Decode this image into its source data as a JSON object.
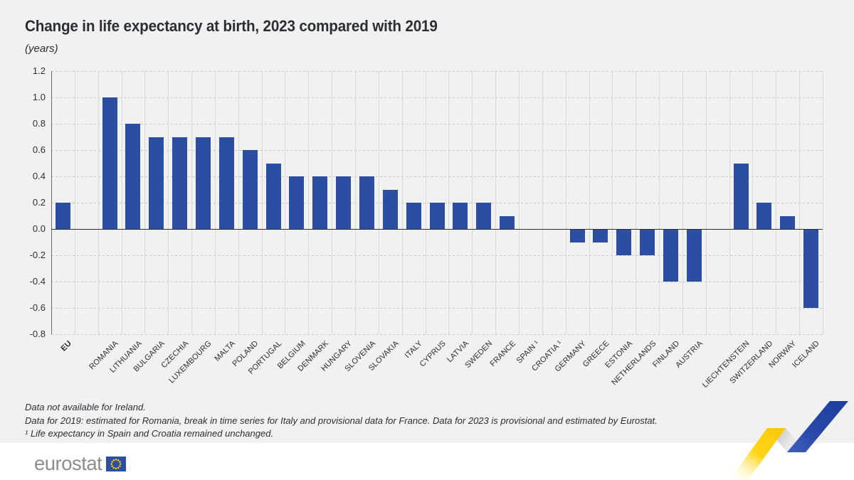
{
  "page": {
    "title": "Change in life expectancy at birth, 2023 compared with 2019",
    "subtitle": "(years)"
  },
  "footnotes": [
    "Data not available for Ireland.",
    "Data for 2019: estimated for Romania, break in time series for Italy and provisional data for France. Data for 2023 is provisional and estimated by Eurostat.",
    "¹ Life expectancy in Spain and Croatia remained unchanged."
  ],
  "logo": {
    "text": "eurostat",
    "flag_icon": "eu-flag-icon"
  },
  "colors": {
    "background": "#f1f1f1",
    "bar": "#2b4ea2",
    "text": "#2a2e35",
    "grid_dashed": "#c6c6c6",
    "grid_vertical": "#d8d8d8",
    "zero_line": "#2f2f2f",
    "logo_gray": "#8a8e92",
    "flag_blue": "#2c4fa3",
    "star_yellow": "#ffcc00",
    "ribbon_yellow": "#ffd211",
    "ribbon_gray": "#c4c4c4",
    "ribbon_blue": "#2746a8"
  },
  "chart_data": {
    "type": "bar",
    "title": "Change in life expectancy at birth, 2023 compared with 2019",
    "unit": "years",
    "categories": [
      "EU",
      "ROMANIA",
      "LITHUANIA",
      "BULGARIA",
      "CZECHIA",
      "LUXEMBOURG",
      "MALTA",
      "POLAND",
      "PORTUGAL",
      "BELGIUM",
      "DENMARK",
      "HUNGARY",
      "SLOVENIA",
      "SLOVAKIA",
      "ITALY",
      "CYPRUS",
      "LATVIA",
      "SWEDEN",
      "FRANCE",
      "SPAIN ¹",
      "CROATIA ¹",
      "GERMANY",
      "GREECE",
      "ESTONIA",
      "NETHERLANDS",
      "FINLAND",
      "AUSTRIA",
      "LIECHTENSTEIN",
      "SWITZERLAND",
      "NORWAY",
      "ICELAND"
    ],
    "values": [
      0.2,
      1.0,
      0.8,
      0.7,
      0.7,
      0.7,
      0.7,
      0.6,
      0.5,
      0.4,
      0.4,
      0.4,
      0.4,
      0.3,
      0.2,
      0.2,
      0.2,
      0.2,
      0.1,
      0.0,
      0.0,
      -0.1,
      -0.1,
      -0.2,
      -0.2,
      -0.4,
      -0.4,
      0.5,
      0.2,
      0.1,
      -0.6
    ],
    "y_ticks": [
      "1.2",
      "1.0",
      "0.8",
      "0.6",
      "0.4",
      "0.2",
      "0.0",
      "-0.2",
      "-0.4",
      "-0.6",
      "-0.8"
    ],
    "ylim": [
      -0.8,
      1.2
    ],
    "bar_color": "#2b4ea2",
    "grid": true,
    "legend": "none",
    "layout": {
      "gap_after_indices": [
        0,
        26
      ],
      "bold_categories": [
        "EU"
      ]
    }
  }
}
